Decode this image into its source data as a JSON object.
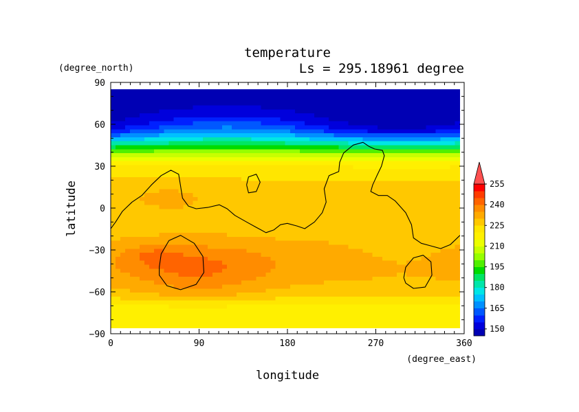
{
  "chart_data": {
    "type": "heatmap",
    "title": "temperature",
    "subtitle": "Ls = 295.18961 degree",
    "xlabel": "longitude",
    "ylabel": "latitude",
    "xunit": "(degree_east)",
    "yunit": "(degree_north)",
    "xlim": [
      0,
      360
    ],
    "ylim": [
      -90,
      90
    ],
    "xticks": [
      "0",
      "90",
      "180",
      "270",
      "360"
    ],
    "yticks": [
      "90",
      "60",
      "30",
      "0",
      "−30",
      "−60",
      "−90"
    ],
    "colorbar": {
      "labels": [
        "150",
        "165",
        "180",
        "195",
        "210",
        "225",
        "240",
        "255"
      ],
      "levels": [
        145,
        150,
        155,
        160,
        165,
        170,
        175,
        180,
        185,
        190,
        195,
        200,
        205,
        210,
        215,
        220,
        225,
        230,
        235,
        240,
        245,
        250,
        255,
        260
      ],
      "colors": [
        "#0000b4",
        "#0000dc",
        "#0020ff",
        "#0058ff",
        "#0090ff",
        "#00c0ff",
        "#00e6e6",
        "#00e6aa",
        "#00e664",
        "#00dc00",
        "#50f000",
        "#96ff00",
        "#c8ff00",
        "#ebff00",
        "#fff000",
        "#ffe600",
        "#ffc800",
        "#ffaa00",
        "#ff8c00",
        "#ff6400",
        "#ff3c00",
        "#ff0000",
        "#ff5050"
      ],
      "extend_max": true
    },
    "grid": false,
    "legend": "right"
  }
}
